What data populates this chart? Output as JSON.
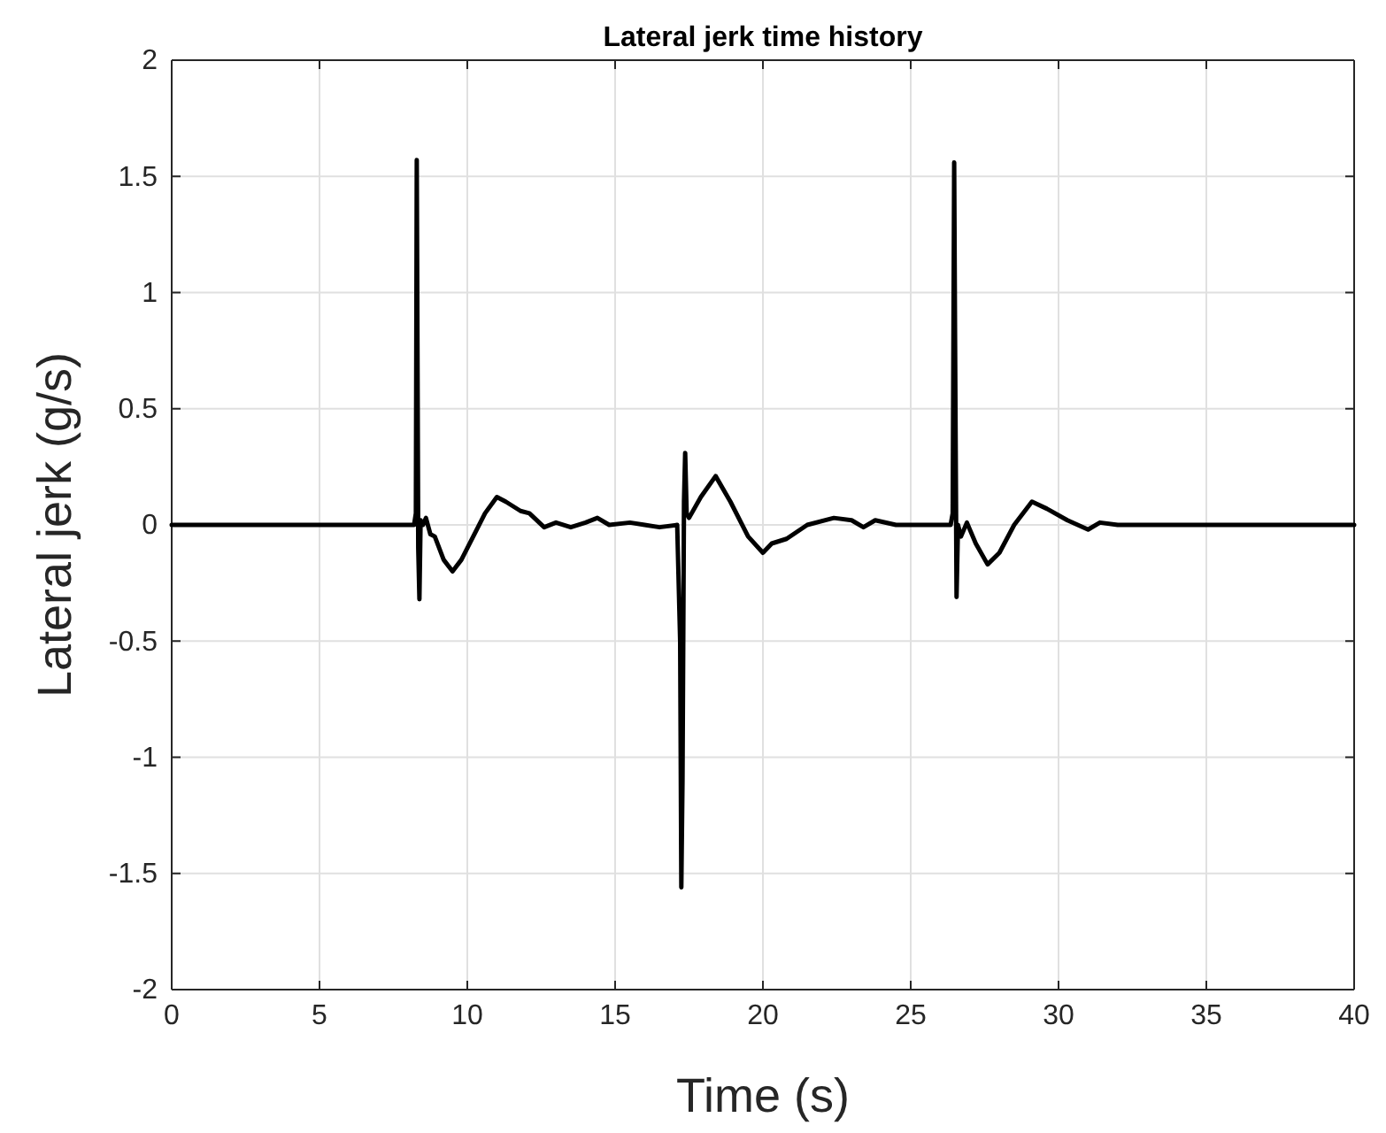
{
  "chart_data": {
    "type": "line",
    "title": "Lateral jerk time history",
    "xlabel": "Time (s)",
    "ylabel": "Lateral jerk (g/s)",
    "xlim": [
      0,
      40
    ],
    "ylim": [
      -2,
      2
    ],
    "xticks": [
      0,
      5,
      10,
      15,
      20,
      25,
      30,
      35,
      40
    ],
    "yticks": [
      -2,
      -1.5,
      -1,
      -0.5,
      0,
      0.5,
      1,
      1.5,
      2
    ],
    "grid": true,
    "series": [
      {
        "color": "#000000",
        "x": [
          0,
          8.2,
          8.26,
          8.29,
          8.31,
          8.34,
          8.38,
          8.42,
          8.5,
          8.6,
          8.75,
          8.9,
          9.2,
          9.5,
          9.8,
          10.2,
          10.6,
          11.0,
          11.3,
          11.8,
          12.1,
          12.6,
          13.0,
          13.5,
          14.0,
          14.4,
          14.8,
          15.5,
          16.0,
          16.5,
          17.1,
          17.2,
          17.24,
          17.28,
          17.33,
          17.37,
          17.42,
          17.5,
          17.9,
          18.4,
          18.9,
          19.5,
          20.0,
          20.3,
          20.8,
          21.5,
          22.4,
          23.0,
          23.4,
          23.8,
          24.5,
          26.35,
          26.42,
          26.47,
          26.5,
          26.55,
          26.6,
          26.7,
          26.9,
          27.2,
          27.6,
          28.0,
          28.5,
          29.1,
          29.6,
          30.3,
          31.0,
          31.4,
          32.0,
          40
        ],
        "values": [
          0,
          0,
          0.05,
          1.57,
          0.9,
          -0.1,
          -0.32,
          0.02,
          0,
          0.03,
          -0.04,
          -0.05,
          -0.15,
          -0.2,
          -0.15,
          -0.05,
          0.05,
          0.12,
          0.1,
          0.06,
          0.05,
          -0.01,
          0.01,
          -0.01,
          0.01,
          0.03,
          0,
          0.01,
          0,
          -0.01,
          0,
          -0.5,
          -1.56,
          -1.1,
          0.1,
          0.31,
          0.05,
          0.03,
          0.12,
          0.21,
          0.1,
          -0.05,
          -0.12,
          -0.08,
          -0.06,
          0,
          0.03,
          0.02,
          -0.01,
          0.02,
          0,
          0,
          0.05,
          1.56,
          0.8,
          -0.31,
          0,
          -0.05,
          0.01,
          -0.08,
          -0.17,
          -0.12,
          0,
          0.1,
          0.07,
          0.02,
          -0.02,
          0.01,
          0,
          0
        ]
      }
    ]
  }
}
